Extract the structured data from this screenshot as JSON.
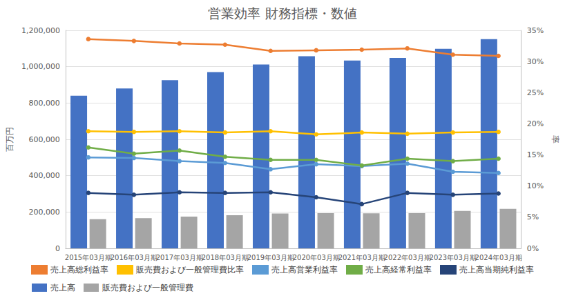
{
  "chart_data": {
    "type": "bar",
    "title": "営業効率 財務指標・数値",
    "y_label": "百万円",
    "y2_label": "率",
    "categories": [
      "2015年03月期",
      "2016年03月期",
      "2017年03月期",
      "2018年03月期",
      "2019年03月期",
      "2020年03月期",
      "2021年03月期",
      "2022年03月期",
      "2023年03月期",
      "2024年03月期"
    ],
    "ylim": [
      0,
      1200000
    ],
    "yticks": [
      0,
      {
        "value": 200000,
        "label": "200,000"
      },
      {
        "value": 400000,
        "label": "400,000"
      },
      {
        "value": 600000,
        "label": "600,000"
      },
      {
        "value": 800000,
        "label": "800,000"
      },
      {
        "value": 1000000,
        "label": "1,000,000"
      },
      {
        "value": 1200000,
        "label": "1,200,000"
      }
    ],
    "y2lim": [
      0,
      35
    ],
    "y2ticks": [
      {
        "value": 0,
        "label": "0%"
      },
      {
        "value": 5,
        "label": "5%"
      },
      {
        "value": 10,
        "label": "10%"
      },
      {
        "value": 15,
        "label": "15%"
      },
      {
        "value": 20,
        "label": "20%"
      },
      {
        "value": 25,
        "label": "25%"
      },
      {
        "value": 30,
        "label": "30%"
      },
      {
        "value": 35,
        "label": "35%"
      }
    ],
    "grid": true,
    "legend": "bottom",
    "series": [
      {
        "name": "売上高総利益率",
        "type": "line",
        "axis": "y2",
        "marker": "circle",
        "color": "#ed7d31",
        "values": [
          33.6,
          33.3,
          32.9,
          32.7,
          31.7,
          31.8,
          31.9,
          32.1,
          31.1,
          30.9
        ]
      },
      {
        "name": "販売費および一般管理費比率",
        "type": "line",
        "axis": "y2",
        "marker": "circle",
        "color": "#ffc000",
        "values": [
          18.8,
          18.7,
          18.8,
          18.6,
          18.8,
          18.3,
          18.6,
          18.4,
          18.6,
          18.7
        ]
      },
      {
        "name": "売上高営業利益率",
        "type": "line",
        "axis": "y2",
        "marker": "circle",
        "color": "#5b9bd5",
        "values": [
          14.6,
          14.5,
          14.0,
          13.7,
          12.7,
          13.5,
          13.2,
          13.6,
          12.3,
          12.1
        ]
      },
      {
        "name": "売上高経常利益率",
        "type": "line",
        "axis": "y2",
        "marker": "circle",
        "color": "#70ad47",
        "values": [
          16.2,
          15.2,
          15.7,
          14.7,
          14.2,
          14.2,
          13.3,
          14.4,
          14.0,
          14.4
        ]
      },
      {
        "name": "売上高当期純利益率",
        "type": "line",
        "axis": "y2",
        "marker": "circle",
        "color": "#264478",
        "values": [
          8.9,
          8.6,
          9.0,
          8.9,
          9.0,
          8.2,
          7.1,
          8.9,
          8.6,
          8.8
        ]
      },
      {
        "name": "売上高",
        "type": "bar",
        "color": "#4472c4",
        "values": [
          840000,
          880000,
          926000,
          970000,
          1012000,
          1058000,
          1034000,
          1048000,
          1098000,
          1152000
        ]
      },
      {
        "name": "販売費および一般管理費",
        "type": "bar",
        "color": "#a5a5a5",
        "values": [
          160000,
          166000,
          175000,
          182000,
          192000,
          194000,
          193000,
          194000,
          206000,
          217000
        ]
      }
    ]
  }
}
